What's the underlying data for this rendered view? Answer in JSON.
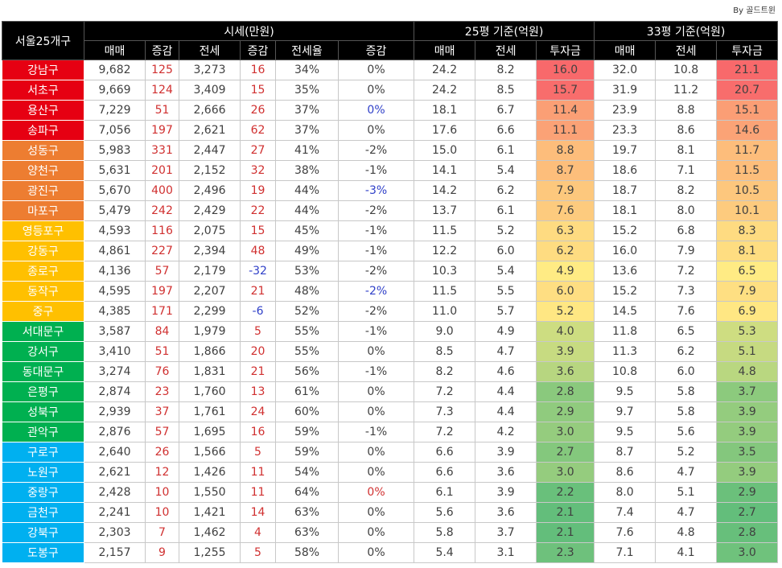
{
  "byline": "By 골드트윈",
  "header": {
    "district": "서울25개구",
    "groups": [
      "시세(만원)",
      "25평 기준(억원)",
      "33평 기준(억원)"
    ],
    "columns": [
      "매매",
      "증감",
      "전세",
      "증감",
      "전세율",
      "증감",
      "매매",
      "전세",
      "투자금",
      "매매",
      "전세",
      "투자금"
    ]
  },
  "table": {
    "rows": [
      {
        "name": "강남구",
        "color": "#e60012",
        "cells": [
          "9,682",
          "125",
          "3,273",
          "16",
          "34%",
          "0%",
          "24.2",
          "8.2",
          "16.0",
          "32.0",
          "10.8",
          "21.1"
        ],
        "change_colors": [
          "#d03030",
          "#d03030",
          "#404040"
        ]
      },
      {
        "name": "서초구",
        "color": "#e60012",
        "cells": [
          "9,669",
          "124",
          "3,409",
          "15",
          "35%",
          "0%",
          "24.2",
          "8.5",
          "15.7",
          "31.9",
          "11.2",
          "20.7"
        ],
        "change_colors": [
          "#d03030",
          "#d03030",
          "#404040"
        ]
      },
      {
        "name": "용산구",
        "color": "#e60012",
        "cells": [
          "7,229",
          "51",
          "2,666",
          "26",
          "37%",
          "0%",
          "18.1",
          "6.7",
          "11.4",
          "23.9",
          "8.8",
          "15.1"
        ],
        "change_colors": [
          "#d03030",
          "#d03030",
          "#3040c8"
        ]
      },
      {
        "name": "송파구",
        "color": "#e60012",
        "cells": [
          "7,056",
          "197",
          "2,621",
          "62",
          "37%",
          "0%",
          "17.6",
          "6.6",
          "11.1",
          "23.3",
          "8.6",
          "14.6"
        ],
        "change_colors": [
          "#d03030",
          "#d03030",
          "#404040"
        ]
      },
      {
        "name": "성동구",
        "color": "#ed7d31",
        "cells": [
          "5,983",
          "331",
          "2,447",
          "27",
          "41%",
          "-2%",
          "15.0",
          "6.1",
          "8.8",
          "19.7",
          "8.1",
          "11.7"
        ],
        "change_colors": [
          "#d03030",
          "#d03030",
          "#404040"
        ]
      },
      {
        "name": "양천구",
        "color": "#ed7d31",
        "cells": [
          "5,631",
          "201",
          "2,152",
          "32",
          "38%",
          "-1%",
          "14.1",
          "5.4",
          "8.7",
          "18.6",
          "7.1",
          "11.5"
        ],
        "change_colors": [
          "#d03030",
          "#d03030",
          "#404040"
        ]
      },
      {
        "name": "광진구",
        "color": "#ed7d31",
        "cells": [
          "5,670",
          "400",
          "2,496",
          "19",
          "44%",
          "-3%",
          "14.2",
          "6.2",
          "7.9",
          "18.7",
          "8.2",
          "10.5"
        ],
        "change_colors": [
          "#d03030",
          "#d03030",
          "#3040c8"
        ]
      },
      {
        "name": "마포구",
        "color": "#ed7d31",
        "cells": [
          "5,479",
          "242",
          "2,429",
          "22",
          "44%",
          "-2%",
          "13.7",
          "6.1",
          "7.6",
          "18.1",
          "8.0",
          "10.1"
        ],
        "change_colors": [
          "#d03030",
          "#d03030",
          "#404040"
        ]
      },
      {
        "name": "영등포구",
        "color": "#ffc000",
        "cells": [
          "4,593",
          "116",
          "2,075",
          "15",
          "45%",
          "-1%",
          "11.5",
          "5.2",
          "6.3",
          "15.2",
          "6.8",
          "8.3"
        ],
        "change_colors": [
          "#d03030",
          "#d03030",
          "#404040"
        ]
      },
      {
        "name": "강동구",
        "color": "#ffc000",
        "cells": [
          "4,861",
          "227",
          "2,394",
          "48",
          "49%",
          "-1%",
          "12.2",
          "6.0",
          "6.2",
          "16.0",
          "7.9",
          "8.1"
        ],
        "change_colors": [
          "#d03030",
          "#d03030",
          "#404040"
        ]
      },
      {
        "name": "종로구",
        "color": "#ffc000",
        "cells": [
          "4,136",
          "57",
          "2,179",
          "-32",
          "53%",
          "-2%",
          "10.3",
          "5.4",
          "4.9",
          "13.6",
          "7.2",
          "6.5"
        ],
        "change_colors": [
          "#d03030",
          "#3040c8",
          "#404040"
        ]
      },
      {
        "name": "동작구",
        "color": "#ffc000",
        "cells": [
          "4,595",
          "197",
          "2,207",
          "21",
          "48%",
          "-2%",
          "11.5",
          "5.5",
          "6.0",
          "15.2",
          "7.3",
          "7.9"
        ],
        "change_colors": [
          "#d03030",
          "#d03030",
          "#3040c8"
        ]
      },
      {
        "name": "중구",
        "color": "#ffc000",
        "cells": [
          "4,385",
          "171",
          "2,299",
          "-6",
          "52%",
          "-2%",
          "11.0",
          "5.7",
          "5.2",
          "14.5",
          "7.6",
          "6.9"
        ],
        "change_colors": [
          "#d03030",
          "#3040c8",
          "#404040"
        ]
      },
      {
        "name": "서대문구",
        "color": "#00b050",
        "cells": [
          "3,587",
          "84",
          "1,979",
          "5",
          "55%",
          "-1%",
          "9.0",
          "4.9",
          "4.0",
          "11.8",
          "6.5",
          "5.3"
        ],
        "change_colors": [
          "#d03030",
          "#d03030",
          "#404040"
        ]
      },
      {
        "name": "강서구",
        "color": "#00b050",
        "cells": [
          "3,410",
          "51",
          "1,866",
          "20",
          "55%",
          "0%",
          "8.5",
          "4.7",
          "3.9",
          "11.3",
          "6.2",
          "5.1"
        ],
        "change_colors": [
          "#d03030",
          "#d03030",
          "#404040"
        ]
      },
      {
        "name": "동대문구",
        "color": "#00b050",
        "cells": [
          "3,274",
          "76",
          "1,831",
          "21",
          "56%",
          "-1%",
          "8.2",
          "4.6",
          "3.6",
          "10.8",
          "6.0",
          "4.8"
        ],
        "change_colors": [
          "#d03030",
          "#d03030",
          "#404040"
        ]
      },
      {
        "name": "은평구",
        "color": "#00b050",
        "cells": [
          "2,874",
          "23",
          "1,760",
          "13",
          "61%",
          "0%",
          "7.2",
          "4.4",
          "2.8",
          "9.5",
          "5.8",
          "3.7"
        ],
        "change_colors": [
          "#d03030",
          "#d03030",
          "#404040"
        ]
      },
      {
        "name": "성북구",
        "color": "#00b050",
        "cells": [
          "2,939",
          "37",
          "1,761",
          "24",
          "60%",
          "0%",
          "7.3",
          "4.4",
          "2.9",
          "9.7",
          "5.8",
          "3.9"
        ],
        "change_colors": [
          "#d03030",
          "#d03030",
          "#404040"
        ]
      },
      {
        "name": "관악구",
        "color": "#00b050",
        "cells": [
          "2,876",
          "57",
          "1,695",
          "16",
          "59%",
          "-1%",
          "7.2",
          "4.2",
          "3.0",
          "9.5",
          "5.6",
          "3.9"
        ],
        "change_colors": [
          "#d03030",
          "#d03030",
          "#404040"
        ]
      },
      {
        "name": "구로구",
        "color": "#00b0f0",
        "cells": [
          "2,640",
          "26",
          "1,566",
          "5",
          "59%",
          "0%",
          "6.6",
          "3.9",
          "2.7",
          "8.7",
          "5.2",
          "3.5"
        ],
        "change_colors": [
          "#d03030",
          "#d03030",
          "#404040"
        ]
      },
      {
        "name": "노원구",
        "color": "#00b0f0",
        "cells": [
          "2,621",
          "12",
          "1,426",
          "11",
          "54%",
          "0%",
          "6.6",
          "3.6",
          "3.0",
          "8.6",
          "4.7",
          "3.9"
        ],
        "change_colors": [
          "#d03030",
          "#d03030",
          "#404040"
        ]
      },
      {
        "name": "중랑구",
        "color": "#00b0f0",
        "cells": [
          "2,428",
          "10",
          "1,550",
          "11",
          "64%",
          "0%",
          "6.1",
          "3.9",
          "2.2",
          "8.0",
          "5.1",
          "2.9"
        ],
        "change_colors": [
          "#d03030",
          "#d03030",
          "#d03030"
        ]
      },
      {
        "name": "금천구",
        "color": "#00b0f0",
        "cells": [
          "2,241",
          "10",
          "1,421",
          "14",
          "63%",
          "0%",
          "5.6",
          "3.6",
          "2.1",
          "7.4",
          "4.7",
          "2.7"
        ],
        "change_colors": [
          "#d03030",
          "#d03030",
          "#404040"
        ]
      },
      {
        "name": "강북구",
        "color": "#00b0f0",
        "cells": [
          "2,303",
          "7",
          "1,462",
          "4",
          "63%",
          "0%",
          "5.8",
          "3.7",
          "2.1",
          "7.6",
          "4.8",
          "2.8"
        ],
        "change_colors": [
          "#d03030",
          "#d03030",
          "#404040"
        ]
      },
      {
        "name": "도봉구",
        "color": "#00b0f0",
        "cells": [
          "2,157",
          "9",
          "1,255",
          "5",
          "58%",
          "0%",
          "5.4",
          "3.1",
          "2.3",
          "7.1",
          "4.1",
          "3.0"
        ],
        "change_colors": [
          "#d03030",
          "#d03030",
          "#404040"
        ]
      }
    ]
  }
}
